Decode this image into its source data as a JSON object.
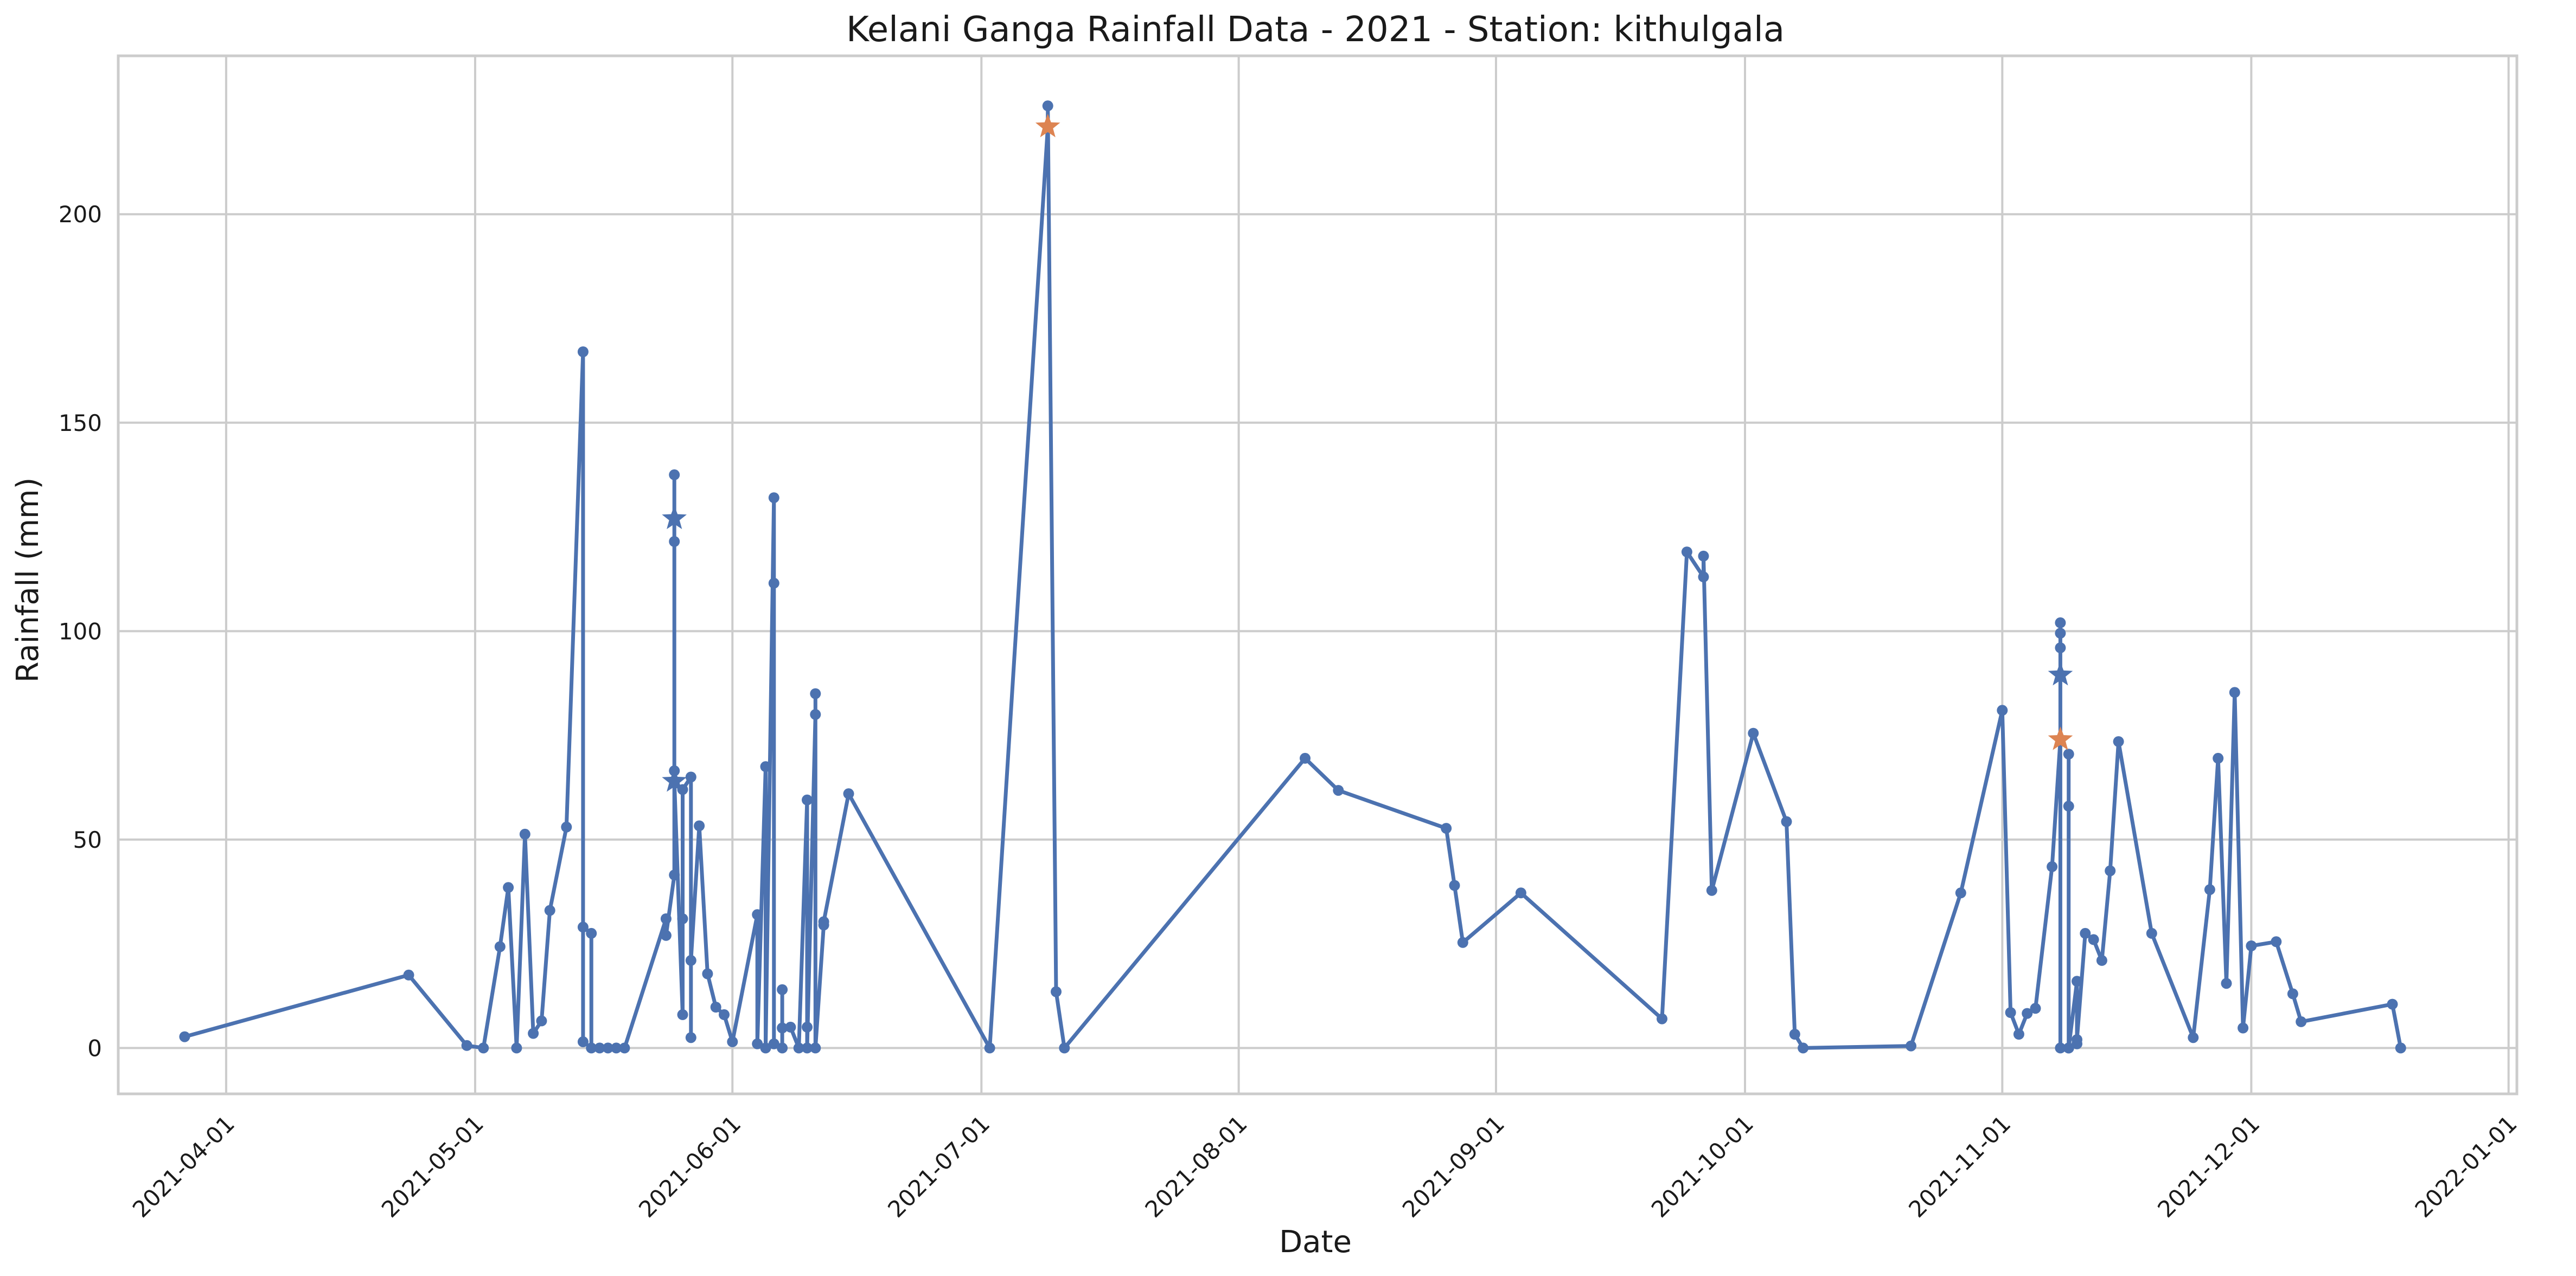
{
  "chart_data": {
    "type": "line",
    "title": "Kelani Ganga Rainfall Data - 2021 - Station: kithulgala",
    "xlabel": "Date",
    "ylabel": "Rainfall (mm)",
    "xlim": [
      "2021-03-19",
      "2022-01-02"
    ],
    "ylim": [
      -11,
      238
    ],
    "grid": true,
    "colors": {
      "series": "#4c72b0",
      "marker_alt": "#dd8452",
      "grid": "#cccccc"
    },
    "x_ticks": [
      "2021-04-01",
      "2021-05-01",
      "2021-06-01",
      "2021-07-01",
      "2021-08-01",
      "2021-09-01",
      "2021-10-01",
      "2021-11-01",
      "2021-12-01",
      "2022-01-01"
    ],
    "y_ticks": [
      0,
      50,
      100,
      150,
      200
    ],
    "series": [
      {
        "points": [
          [
            "2021-03-27",
            2.7
          ],
          [
            "2021-04-23",
            17.5
          ],
          [
            "2021-04-30",
            0.6
          ],
          [
            "2021-05-02",
            0.0
          ],
          [
            "2021-05-04",
            24.3
          ],
          [
            "2021-05-05",
            38.5
          ],
          [
            "2021-05-06",
            0.0
          ],
          [
            "2021-05-07",
            51.3
          ],
          [
            "2021-05-08",
            3.5
          ],
          [
            "2021-05-09",
            6.5
          ],
          [
            "2021-05-10",
            33.0
          ],
          [
            "2021-05-12",
            53.0
          ],
          [
            "2021-05-14",
            167.0
          ],
          [
            "2021-05-14",
            1.5
          ],
          [
            "2021-05-14",
            29.0
          ],
          [
            "2021-05-15",
            27.5
          ],
          [
            "2021-05-15",
            0.0
          ],
          [
            "2021-05-16",
            0.0
          ],
          [
            "2021-05-17",
            0.0
          ],
          [
            "2021-05-18",
            0.0
          ],
          [
            "2021-05-19",
            0.0
          ],
          [
            "2021-05-24",
            31.0
          ],
          [
            "2021-05-24",
            27.0
          ],
          [
            "2021-05-25",
            41.5
          ],
          [
            "2021-05-25",
            66.5
          ],
          [
            "2021-05-25",
            121.5
          ],
          [
            "2021-05-25",
            137.5
          ],
          [
            "2021-05-25",
            127.0
          ],
          [
            "2021-05-25",
            64.0
          ],
          [
            "2021-05-26",
            8.0
          ],
          [
            "2021-05-26",
            31.0
          ],
          [
            "2021-05-26",
            62.0
          ],
          [
            "2021-05-27",
            65.0
          ],
          [
            "2021-05-27",
            2.5
          ],
          [
            "2021-05-27",
            21.0
          ],
          [
            "2021-05-28",
            53.3
          ],
          [
            "2021-05-29",
            17.8
          ],
          [
            "2021-05-30",
            9.8
          ],
          [
            "2021-05-31",
            8.0
          ],
          [
            "2021-06-01",
            1.5
          ],
          [
            "2021-06-04",
            32.0
          ],
          [
            "2021-06-04",
            1.0
          ],
          [
            "2021-06-05",
            67.5
          ],
          [
            "2021-06-05",
            0.0
          ],
          [
            "2021-06-06",
            132.0
          ],
          [
            "2021-06-06",
            111.5
          ],
          [
            "2021-06-06",
            1.0
          ],
          [
            "2021-06-07",
            0.0
          ],
          [
            "2021-06-07",
            14.0
          ],
          [
            "2021-06-07",
            4.8
          ],
          [
            "2021-06-08",
            5.0
          ],
          [
            "2021-06-09",
            0.0
          ],
          [
            "2021-06-10",
            59.5
          ],
          [
            "2021-06-10",
            5.0
          ],
          [
            "2021-06-10",
            0.0
          ],
          [
            "2021-06-11",
            80.0
          ],
          [
            "2021-06-11",
            85.0
          ],
          [
            "2021-06-11",
            0.0
          ],
          [
            "2021-06-12",
            29.5
          ],
          [
            "2021-06-12",
            30.3
          ],
          [
            "2021-06-15",
            61.0
          ],
          [
            "2021-07-02",
            0.0
          ],
          [
            "2021-07-09",
            221.0
          ],
          [
            "2021-07-09",
            226.0
          ],
          [
            "2021-07-10",
            13.5
          ],
          [
            "2021-07-11",
            0.0
          ],
          [
            "2021-08-09",
            69.5
          ],
          [
            "2021-08-13",
            61.8
          ],
          [
            "2021-08-26",
            52.7
          ],
          [
            "2021-08-27",
            39.0
          ],
          [
            "2021-08-28",
            25.3
          ],
          [
            "2021-09-04",
            37.2
          ],
          [
            "2021-09-21",
            7.0
          ],
          [
            "2021-09-24",
            119.0
          ],
          [
            "2021-09-26",
            113.0
          ],
          [
            "2021-09-26",
            118.0
          ],
          [
            "2021-09-27",
            37.8
          ],
          [
            "2021-10-02",
            75.5
          ],
          [
            "2021-10-06",
            54.3
          ],
          [
            "2021-10-07",
            3.3
          ],
          [
            "2021-10-08",
            0.0
          ],
          [
            "2021-10-21",
            0.5
          ],
          [
            "2021-10-27",
            37.2
          ],
          [
            "2021-11-01",
            81.0
          ],
          [
            "2021-11-02",
            8.5
          ],
          [
            "2021-11-03",
            3.3
          ],
          [
            "2021-11-04",
            8.3
          ],
          [
            "2021-11-05",
            9.5
          ],
          [
            "2021-11-07",
            43.5
          ],
          [
            "2021-11-08",
            74.0
          ],
          [
            "2021-11-08",
            89.5
          ],
          [
            "2021-11-08",
            96.0
          ],
          [
            "2021-11-08",
            99.5
          ],
          [
            "2021-11-08",
            102.0
          ],
          [
            "2021-11-08",
            0.0
          ],
          [
            "2021-11-09",
            0.0
          ],
          [
            "2021-11-09",
            58.0
          ],
          [
            "2021-11-09",
            70.5
          ],
          [
            "2021-11-09",
            0.0
          ],
          [
            "2021-11-10",
            16.0
          ],
          [
            "2021-11-10",
            1.0
          ],
          [
            "2021-11-10",
            2.0
          ],
          [
            "2021-11-11",
            27.5
          ],
          [
            "2021-11-12",
            26.0
          ],
          [
            "2021-11-13",
            21.0
          ],
          [
            "2021-11-14",
            42.5
          ],
          [
            "2021-11-15",
            73.5
          ],
          [
            "2021-11-19",
            27.5
          ],
          [
            "2021-11-24",
            2.5
          ],
          [
            "2021-11-26",
            38.0
          ],
          [
            "2021-11-27",
            69.5
          ],
          [
            "2021-11-28",
            15.5
          ],
          [
            "2021-11-29",
            85.3
          ],
          [
            "2021-11-30",
            4.8
          ],
          [
            "2021-12-01",
            24.5
          ],
          [
            "2021-12-04",
            25.5
          ],
          [
            "2021-12-06",
            13.0
          ],
          [
            "2021-12-07",
            6.3
          ],
          [
            "2021-12-18",
            10.5
          ],
          [
            "2021-12-19",
            0.0
          ]
        ]
      }
    ],
    "highlight_markers": [
      {
        "x": "2021-05-25",
        "y": 127.0,
        "shape": "star",
        "color": "#4c72b0"
      },
      {
        "x": "2021-05-25",
        "y": 64.0,
        "shape": "star",
        "color": "#4c72b0"
      },
      {
        "x": "2021-07-09",
        "y": 221.0,
        "shape": "star",
        "color": "#dd8452"
      },
      {
        "x": "2021-11-08",
        "y": 89.5,
        "shape": "star",
        "color": "#4c72b0"
      },
      {
        "x": "2021-11-08",
        "y": 74.0,
        "shape": "star",
        "color": "#dd8452"
      }
    ]
  }
}
